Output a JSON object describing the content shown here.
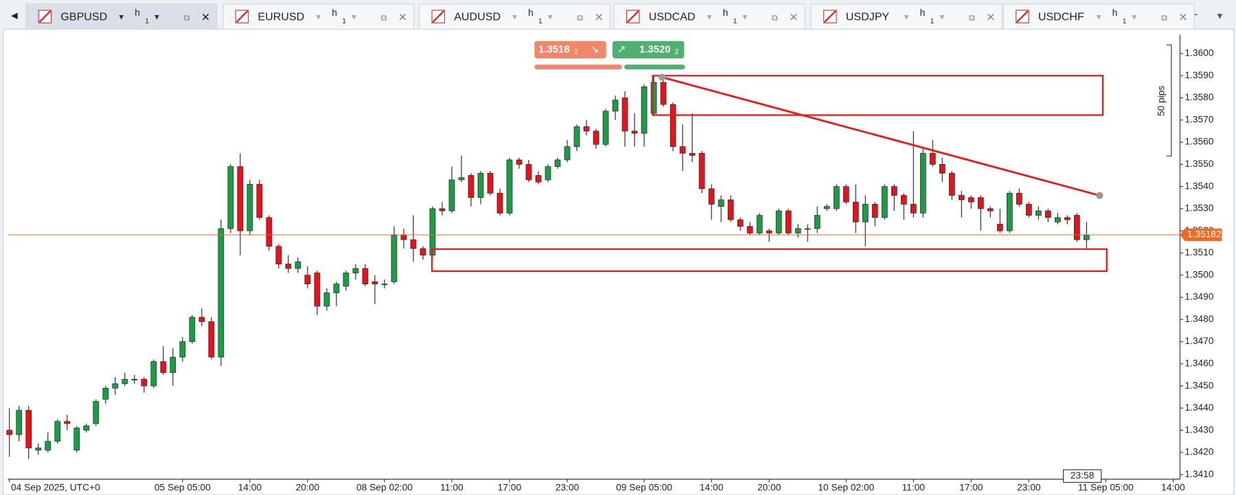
{
  "tabs": [
    {
      "symbol": "GBPUSD",
      "timeframe": "h",
      "sub": "1"
    },
    {
      "symbol": "EURUSD",
      "timeframe": "h",
      "sub": "1"
    },
    {
      "symbol": "AUDUSD",
      "timeframe": "h",
      "sub": "1"
    },
    {
      "symbol": "USDCAD",
      "timeframe": "h",
      "sub": "1"
    },
    {
      "symbol": "USDJPY",
      "timeframe": "h",
      "sub": "1"
    },
    {
      "symbol": "USDCHF",
      "timeframe": "h",
      "sub": "1"
    }
  ],
  "trade": {
    "sell": "1.3518",
    "sell_pip": "2",
    "buy": "1.3520",
    "buy_pip": "2"
  },
  "range_label": "50 pips",
  "countdown": "23:58",
  "chart_data": {
    "type": "candlestick",
    "up_color": "#1f9a49",
    "down_color": "#e3141c",
    "open": [
      1.343,
      1.3428,
      1.3439,
      1.3421,
      1.3421,
      1.3425,
      1.3434,
      1.3421,
      1.343,
      1.3433,
      1.3444,
      1.3449,
      1.3451,
      1.3453,
      1.3453,
      1.345,
      1.3461,
      1.3456,
      1.3463,
      1.347,
      1.3481,
      1.3479,
      1.3463,
      1.3521,
      1.3549,
      1.352,
      1.3541,
      1.3526,
      1.3513,
      1.3505,
      1.3503,
      1.35,
      1.3501,
      1.3486,
      1.3492,
      1.3495,
      1.3501,
      1.3503,
      1.3497,
      1.3496,
      1.3497,
      1.3518,
      1.3516,
      1.3512,
      1.3509,
      1.353,
      1.3529,
      1.3543,
      1.3545,
      1.3535,
      1.3546,
      1.3537,
      1.3528,
      1.3552,
      1.355,
      1.3545,
      1.3543,
      1.3549,
      1.3552,
      1.3558,
      1.3567,
      1.3565,
      1.3559,
      1.3574,
      1.358,
      1.3565,
      1.3564,
      1.3573,
      1.3587,
      1.3577,
      1.3558,
      1.3555,
      1.3555,
      1.3539,
      1.3531,
      1.3534,
      1.3525,
      1.3522,
      1.3519,
      1.352,
      1.3519,
      1.3529,
      1.3519,
      1.3521,
      1.3521,
      1.353,
      1.353,
      1.354,
      1.3533,
      1.3524,
      1.3532,
      1.3526,
      1.354,
      1.3536,
      1.3532,
      1.3528,
      1.3555,
      1.355,
      1.3546,
      1.3536,
      1.3535,
      1.3535,
      1.353,
      1.3523,
      1.352,
      1.3537,
      1.3532,
      1.3527,
      1.3529,
      1.3524,
      1.3526,
      1.3527,
      1.3516
    ],
    "high": [
      1.344,
      1.3441,
      1.3441,
      1.3424,
      1.3429,
      1.3435,
      1.3437,
      1.3432,
      1.3433,
      1.3444,
      1.345,
      1.3454,
      1.3456,
      1.3455,
      1.3454,
      1.3462,
      1.3468,
      1.3467,
      1.3472,
      1.3482,
      1.3485,
      1.3481,
      1.3525,
      1.355,
      1.3555,
      1.3543,
      1.3543,
      1.3527,
      1.3514,
      1.3509,
      1.3508,
      1.3504,
      1.3502,
      1.3494,
      1.3497,
      1.3502,
      1.3505,
      1.3505,
      1.35,
      1.3498,
      1.3522,
      1.3521,
      1.3527,
      1.3513,
      1.3531,
      1.3533,
      1.3549,
      1.3554,
      1.3546,
      1.3547,
      1.3547,
      1.3539,
      1.3553,
      1.3553,
      1.3552,
      1.3547,
      1.355,
      1.3553,
      1.3561,
      1.3568,
      1.357,
      1.3566,
      1.3575,
      1.3581,
      1.3583,
      1.3573,
      1.3586,
      1.359,
      1.359,
      1.3578,
      1.3568,
      1.3573,
      1.3556,
      1.3541,
      1.3536,
      1.3536,
      1.3526,
      1.3524,
      1.3528,
      1.3521,
      1.353,
      1.353,
      1.3523,
      1.3523,
      1.3531,
      1.3532,
      1.3541,
      1.3541,
      1.3541,
      1.3536,
      1.3533,
      1.3541,
      1.3541,
      1.3537,
      1.3565,
      1.3557,
      1.3561,
      1.3553,
      1.3547,
      1.3538,
      1.3536,
      1.3536,
      1.3531,
      1.353,
      1.3538,
      1.3539,
      1.3533,
      1.3531,
      1.353,
      1.3528,
      1.3527,
      1.3528,
      1.3524
    ],
    "low": [
      1.3418,
      1.3425,
      1.3417,
      1.3419,
      1.342,
      1.3424,
      1.343,
      1.342,
      1.3429,
      1.3432,
      1.3442,
      1.3446,
      1.345,
      1.3451,
      1.3447,
      1.3449,
      1.3455,
      1.345,
      1.3461,
      1.3469,
      1.3477,
      1.3462,
      1.3459,
      1.3519,
      1.3509,
      1.3518,
      1.3525,
      1.3511,
      1.3503,
      1.3501,
      1.3501,
      1.3494,
      1.3482,
      1.3484,
      1.3486,
      1.3493,
      1.3498,
      1.3495,
      1.3487,
      1.3494,
      1.3496,
      1.3512,
      1.3506,
      1.3507,
      1.3508,
      1.3527,
      1.3528,
      1.3542,
      1.3531,
      1.3532,
      1.3536,
      1.3527,
      1.3527,
      1.3548,
      1.3542,
      1.3541,
      1.3542,
      1.3548,
      1.3551,
      1.3556,
      1.3563,
      1.3557,
      1.3558,
      1.357,
      1.3558,
      1.3558,
      1.3558,
      1.3572,
      1.3576,
      1.3556,
      1.3547,
      1.3551,
      1.3537,
      1.3525,
      1.3524,
      1.3524,
      1.352,
      1.3518,
      1.3518,
      1.3515,
      1.3518,
      1.3518,
      1.3517,
      1.3515,
      1.3519,
      1.3529,
      1.3529,
      1.3532,
      1.3519,
      1.3513,
      1.3522,
      1.3525,
      1.3529,
      1.3525,
      1.3526,
      1.3526,
      1.3549,
      1.3542,
      1.3534,
      1.3526,
      1.353,
      1.352,
      1.3526,
      1.3519,
      1.3519,
      1.3531,
      1.3526,
      1.3525,
      1.3524,
      1.3523,
      1.3523,
      1.3515,
      1.3512
    ],
    "close": [
      1.3428,
      1.3439,
      1.3422,
      1.3422,
      1.3425,
      1.3434,
      1.3433,
      1.3431,
      1.3432,
      1.3443,
      1.3449,
      1.3451,
      1.3453,
      1.3453,
      1.345,
      1.3461,
      1.3456,
      1.3463,
      1.347,
      1.3481,
      1.3479,
      1.3463,
      1.3521,
      1.3549,
      1.352,
      1.3541,
      1.3526,
      1.3513,
      1.3505,
      1.3503,
      1.3506,
      1.3496,
      1.3486,
      1.3492,
      1.3496,
      1.3501,
      1.3503,
      1.3496,
      1.3496,
      1.3496,
      1.3518,
      1.3516,
      1.3512,
      1.3509,
      1.353,
      1.3529,
      1.3543,
      1.3544,
      1.3535,
      1.3546,
      1.3537,
      1.3528,
      1.3552,
      1.355,
      1.3543,
      1.3542,
      1.3549,
      1.3552,
      1.3558,
      1.3567,
      1.3565,
      1.3559,
      1.3574,
      1.3579,
      1.3565,
      1.3564,
      1.3585,
      1.3587,
      1.3577,
      1.3558,
      1.3555,
      1.3554,
      1.3539,
      1.3532,
      1.3534,
      1.3525,
      1.3522,
      1.3519,
      1.3527,
      1.3519,
      1.3529,
      1.3519,
      1.3521,
      1.3521,
      1.3527,
      1.3531,
      1.354,
      1.3533,
      1.3524,
      1.3532,
      1.3526,
      1.354,
      1.3536,
      1.3532,
      1.3528,
      1.3555,
      1.355,
      1.3546,
      1.3536,
      1.3534,
      1.3533,
      1.353,
      1.3529,
      1.352,
      1.3537,
      1.3532,
      1.3527,
      1.3529,
      1.3526,
      1.3526,
      1.3525,
      1.3516,
      1.3518
    ],
    "xlim": [
      -0.16,
      121.72
    ],
    "xticks": [
      {
        "value": 0,
        "label": "04 Sep 2025, UTC+0"
      },
      {
        "value": 18,
        "label": "05 Sep 05:00"
      },
      {
        "value": 25,
        "label": "14:00"
      },
      {
        "value": 31,
        "label": "20:00"
      },
      {
        "value": 39,
        "label": "08 Sep 02:00"
      },
      {
        "value": 46,
        "label": "11:00"
      },
      {
        "value": 52,
        "label": "17:00"
      },
      {
        "value": 58,
        "label": "23:00"
      },
      {
        "value": 66,
        "label": "09 Sep 05:00"
      },
      {
        "value": 73,
        "label": "14:00"
      },
      {
        "value": 79,
        "label": "20:00"
      },
      {
        "value": 87,
        "label": "10 Sep 02:00"
      },
      {
        "value": 94,
        "label": "11:00"
      },
      {
        "value": 100,
        "label": "17:00"
      },
      {
        "value": 106,
        "label": "23:00"
      },
      {
        "value": 114,
        "label": "11 Sep 05:00"
      },
      {
        "value": 121,
        "label": "14:00"
      }
    ],
    "ylim": [
      1.34079,
      1.36085
    ],
    "yticks": [
      {
        "value": 1.341,
        "label": "1.3410"
      },
      {
        "value": 1.342,
        "label": "1.3420"
      },
      {
        "value": 1.343,
        "label": "1.3430"
      },
      {
        "value": 1.344,
        "label": "1.3440"
      },
      {
        "value": 1.345,
        "label": "1.3450"
      },
      {
        "value": 1.346,
        "label": "1.3460"
      },
      {
        "value": 1.347,
        "label": "1.3470"
      },
      {
        "value": 1.348,
        "label": "1.3480"
      },
      {
        "value": 1.349,
        "label": "1.3490"
      },
      {
        "value": 1.35,
        "label": "1.3500"
      },
      {
        "value": 1.351,
        "label": "1.3510"
      },
      {
        "value": 1.352,
        "label": "1.3520"
      },
      {
        "value": 1.353,
        "label": "1.3530"
      },
      {
        "value": 1.354,
        "label": "1.3540"
      },
      {
        "value": 1.355,
        "label": "1.3550"
      },
      {
        "value": 1.356,
        "label": "1.3560"
      },
      {
        "value": 1.357,
        "label": "1.3570"
      },
      {
        "value": 1.358,
        "label": "1.3580"
      },
      {
        "value": 1.359,
        "label": "1.3590"
      },
      {
        "value": 1.36,
        "label": "1.3600"
      }
    ],
    "current_price": 1.35182,
    "current_color": "#f26a21"
  }
}
